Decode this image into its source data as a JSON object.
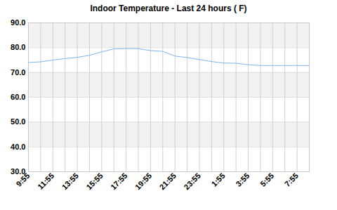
{
  "chart_data": {
    "type": "line",
    "title": "Indoor Temperature - Last 24 hours ( F)",
    "categories": [
      "9:55",
      null,
      "11:55",
      null,
      "13:55",
      null,
      "15:55",
      null,
      "17:55",
      null,
      "19:55",
      null,
      "21:55",
      null,
      "23:55",
      null,
      "1:55",
      null,
      "3:55",
      null,
      "5:55",
      null,
      "7:55",
      null
    ],
    "values": [
      74.0,
      74.3,
      75.0,
      75.6,
      76.1,
      76.9,
      78.3,
      79.5,
      79.6,
      79.6,
      78.8,
      78.5,
      76.6,
      76.0,
      75.2,
      74.4,
      73.8,
      73.7,
      73.1,
      72.8,
      72.8,
      72.8,
      72.8,
      72.8
    ],
    "color": "#7cb5ec",
    "ylim": [
      30,
      90
    ],
    "yticks": [
      {
        "value": 30,
        "label": "30.0"
      },
      {
        "value": 40,
        "label": "40.0"
      },
      {
        "value": 50,
        "label": "50.0"
      },
      {
        "value": 60,
        "label": "60.0"
      },
      {
        "value": 70,
        "label": "70.0"
      },
      {
        "value": 80,
        "label": "80.0"
      },
      {
        "value": 90,
        "label": "90.0"
      }
    ],
    "grid": true
  }
}
